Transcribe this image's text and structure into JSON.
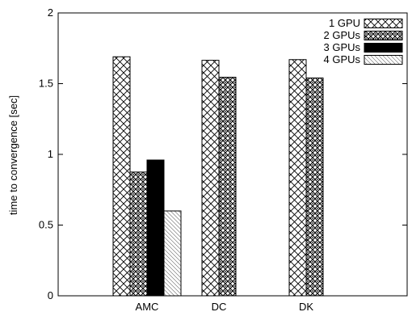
{
  "chart_data": {
    "type": "bar",
    "title": "",
    "xlabel": "",
    "ylabel": "time to convergence [sec]",
    "ylim": [
      0,
      2
    ],
    "yticks": [
      "0",
      "0.5",
      "1",
      "1.5",
      "2"
    ],
    "categories": [
      "AMC",
      "DC",
      "DK"
    ],
    "grid": false,
    "legend_position": "top-right",
    "series": [
      {
        "name": "1 GPU",
        "pattern": "crosshatch",
        "values": [
          1.69,
          1.665,
          1.67
        ]
      },
      {
        "name": "2 GPUs",
        "pattern": "dense-checker",
        "values": [
          0.875,
          1.545,
          1.54
        ]
      },
      {
        "name": "3 GPUs",
        "pattern": "solid-black",
        "values": [
          0.96,
          null,
          null
        ]
      },
      {
        "name": "4 GPUs",
        "pattern": "diagonal-light",
        "values": [
          0.6,
          null,
          null
        ]
      }
    ]
  }
}
